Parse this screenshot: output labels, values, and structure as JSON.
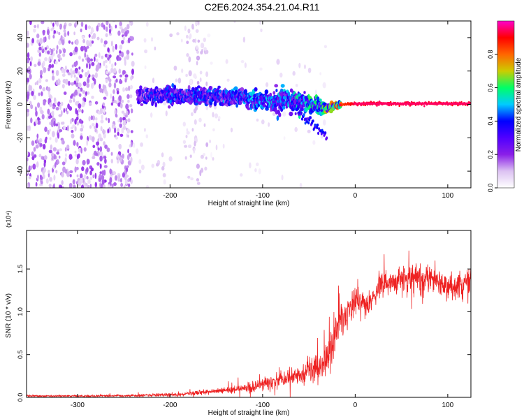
{
  "chart_data": [
    {
      "type": "heatmap",
      "title": "C2E6.2024.354.21.04.R11",
      "xlabel": "Height of straight line (km)",
      "ylabel": "Frequency (Hz)",
      "xlim": [
        -355,
        125
      ],
      "ylim": [
        -50,
        50
      ],
      "x_ticks": [
        "-300",
        "-200",
        "-100",
        "0",
        "100"
      ],
      "x_tick_values": [
        -300,
        -200,
        -100,
        0,
        100
      ],
      "y_ticks": [
        "-40",
        "-20",
        "0",
        "20",
        "40"
      ],
      "y_tick_values": [
        -40,
        -20,
        0,
        20,
        40
      ],
      "colorbar": {
        "label": "Normalized spectral amplitude",
        "range": [
          0,
          1
        ],
        "ticks": [
          "0.0",
          "0.2",
          "0.4",
          "0.6",
          "0.8"
        ],
        "tick_values": [
          0,
          0.2,
          0.4,
          0.6,
          0.8
        ],
        "colors": [
          "#ffffff",
          "#dcc2f2",
          "#8a1fe8",
          "#5000ff",
          "#0000ff",
          "#00ccff",
          "#00ff66",
          "#cccc00",
          "#ff6600",
          "#ff0000",
          "#ff00cc"
        ]
      },
      "bands": [
        {
          "x_range": [
            -355,
            -240
          ],
          "freq_center": 0,
          "freq_halfwidth": 50,
          "density": 0.8,
          "amplitude": 0.16
        },
        {
          "x_range": [
            -240,
            -185
          ],
          "freq_center": 0,
          "freq_halfwidth": 50,
          "density": 0.08,
          "amplitude": 0.08
        },
        {
          "x_range": [
            -185,
            -160
          ],
          "freq_center": 0,
          "freq_halfwidth": 50,
          "density": 0.4,
          "amplitude": 0.1
        },
        {
          "x_range": [
            -160,
            -30
          ],
          "freq_center": 0,
          "freq_halfwidth": 50,
          "density": 0.05,
          "amplitude": 0.06
        }
      ],
      "signal_track": {
        "x": [
          -235,
          -200,
          -150,
          -120,
          -100,
          -80,
          -60,
          -45,
          -35,
          -30,
          -25,
          -15,
          0,
          50,
          100,
          125
        ],
        "freq": [
          5,
          5,
          5,
          4,
          2,
          2,
          1,
          0,
          -2,
          -3,
          -1,
          0,
          0.5,
          0.5,
          0.5,
          0.5
        ],
        "spread": [
          4,
          4,
          4,
          5,
          5,
          6,
          6,
          5,
          3,
          2,
          1.5,
          1,
          0.8,
          0.8,
          0.8,
          0.8
        ],
        "amplitude": [
          0.35,
          0.4,
          0.4,
          0.42,
          0.45,
          0.45,
          0.5,
          0.55,
          0.55,
          0.65,
          0.75,
          0.85,
          0.95,
          0.95,
          0.95,
          0.95
        ],
        "lower_branch": {
          "x": [
            -65,
            -45,
            -30
          ],
          "freq": [
            -4,
            -12,
            -20
          ]
        }
      }
    },
    {
      "type": "line",
      "xlabel": "Height of straight line (km)",
      "ylabel": "SNR (10 * v/v)",
      "y_multiplier": "(x10⁴)",
      "xlim": [
        -355,
        125
      ],
      "ylim": [
        0,
        1.95
      ],
      "x_ticks": [
        "-300",
        "-200",
        "-100",
        "0",
        "100"
      ],
      "x_tick_values": [
        -300,
        -200,
        -100,
        0,
        100
      ],
      "y_ticks": [
        "0.0",
        "0.5",
        "1.0",
        "1.5"
      ],
      "y_tick_values": [
        0,
        0.5,
        1.0,
        1.5
      ],
      "series": [
        {
          "color": "#ee2222",
          "x": [
            -355,
            -300,
            -250,
            -200,
            -170,
            -150,
            -120,
            -100,
            -80,
            -60,
            -50,
            -40,
            -30,
            -25,
            -20,
            -15,
            -10,
            -5,
            0,
            10,
            20,
            25,
            30,
            40,
            50,
            60,
            70,
            80,
            90,
            100,
            110,
            125
          ],
          "y": [
            0.015,
            0.015,
            0.02,
            0.03,
            0.05,
            0.07,
            0.1,
            0.15,
            0.2,
            0.25,
            0.3,
            0.35,
            0.45,
            0.6,
            0.8,
            0.9,
            0.95,
            1.05,
            1.15,
            1.05,
            1.15,
            1.3,
            1.35,
            1.35,
            1.38,
            1.4,
            1.38,
            1.4,
            1.35,
            1.3,
            1.3,
            1.35
          ],
          "noise": [
            0.01,
            0.01,
            0.01,
            0.02,
            0.03,
            0.03,
            0.05,
            0.07,
            0.08,
            0.1,
            0.12,
            0.14,
            0.18,
            0.22,
            0.2,
            0.2,
            0.18,
            0.18,
            0.16,
            0.15,
            0.15,
            0.15,
            0.15,
            0.14,
            0.15,
            0.15,
            0.18,
            0.15,
            0.15,
            0.15,
            0.15,
            0.15
          ]
        }
      ]
    }
  ]
}
